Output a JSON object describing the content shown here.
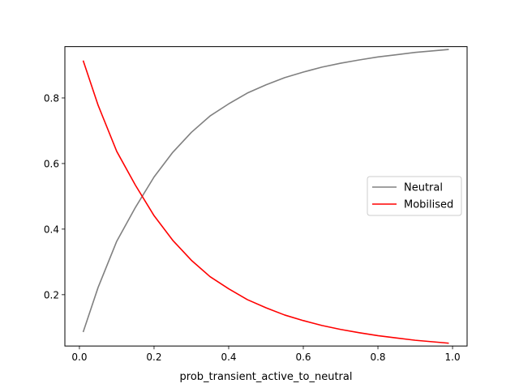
{
  "chart_data": {
    "type": "line",
    "title": "",
    "xlabel": "prob_transient_active_to_neutral",
    "ylabel": "",
    "xlim": [
      -0.039,
      1.039
    ],
    "ylim": [
      0.0435,
      0.9565
    ],
    "x_ticks": [
      0.0,
      0.2,
      0.4,
      0.6,
      0.8,
      1.0
    ],
    "x_tick_labels": [
      "0.0",
      "0.2",
      "0.4",
      "0.6",
      "0.8",
      "1.0"
    ],
    "y_ticks": [
      0.2,
      0.4,
      0.6,
      0.8
    ],
    "y_tick_labels": [
      "0.2",
      "0.4",
      "0.6",
      "0.8"
    ],
    "grid": false,
    "legend_position": "center-right",
    "x": [
      0.01,
      0.05,
      0.1,
      0.15,
      0.2,
      0.25,
      0.3,
      0.35,
      0.4,
      0.45,
      0.5,
      0.55,
      0.6,
      0.65,
      0.7,
      0.75,
      0.8,
      0.85,
      0.9,
      0.95,
      0.99
    ],
    "series": [
      {
        "name": "Neutral",
        "color": "#808080",
        "values": [
          0.086,
          0.222,
          0.363,
          0.466,
          0.559,
          0.634,
          0.695,
          0.745,
          0.782,
          0.815,
          0.84,
          0.862,
          0.879,
          0.894,
          0.906,
          0.916,
          0.925,
          0.932,
          0.939,
          0.944,
          0.948
        ]
      },
      {
        "name": "Mobilised",
        "color": "#ff0000",
        "values": [
          0.914,
          0.778,
          0.637,
          0.534,
          0.441,
          0.366,
          0.305,
          0.255,
          0.218,
          0.185,
          0.16,
          0.138,
          0.121,
          0.106,
          0.094,
          0.084,
          0.075,
          0.068,
          0.061,
          0.056,
          0.052
        ]
      }
    ]
  }
}
